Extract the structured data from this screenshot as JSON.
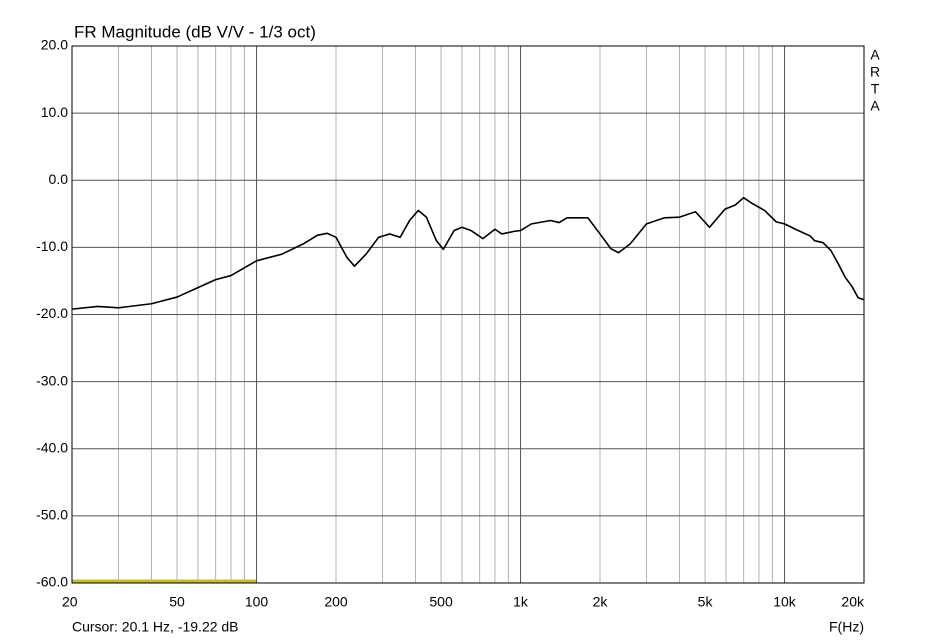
{
  "chart_data": {
    "type": "line",
    "title": "FR Magnitude (dB V/V - 1/3 oct)",
    "watermark": "ARTA",
    "cursor": "Cursor: 20.1 Hz, -19.22 dB",
    "x_label": "F(Hz)",
    "log_x": true,
    "grid": true,
    "xlim": [
      20,
      20000
    ],
    "ylim": [
      -60,
      20
    ],
    "xticks": [
      20,
      50,
      100,
      200,
      500,
      {
        "value": 1000,
        "label": "1k"
      },
      {
        "value": 2000,
        "label": "2k"
      },
      {
        "value": 5000,
        "label": "5k"
      },
      {
        "value": 10000,
        "label": "10k"
      },
      {
        "value": 20000,
        "label": "20k"
      }
    ],
    "xminorticks": [
      30,
      40,
      60,
      70,
      80,
      90,
      300,
      400,
      600,
      700,
      800,
      900,
      3000,
      4000,
      6000,
      7000,
      8000,
      9000
    ],
    "yticks": [
      {
        "value": 20,
        "label": "20.0"
      },
      {
        "value": 10,
        "label": "10.0"
      },
      {
        "value": 0,
        "label": "0.0"
      },
      {
        "value": -10,
        "label": "-10.0"
      },
      {
        "value": -20,
        "label": "-20.0"
      },
      {
        "value": -30,
        "label": "-30.0"
      },
      {
        "value": -40,
        "label": "-40.0"
      },
      {
        "value": -50,
        "label": "-50.0"
      },
      {
        "value": -60,
        "label": "-60.0"
      }
    ],
    "x": [
      20,
      25,
      30,
      40,
      50,
      60,
      70,
      80,
      100,
      125,
      150,
      170,
      185,
      200,
      220,
      235,
      260,
      290,
      320,
      350,
      380,
      410,
      440,
      480,
      510,
      560,
      600,
      650,
      720,
      800,
      850,
      950,
      1000,
      1100,
      1300,
      1400,
      1500,
      1800,
      2000,
      2200,
      2350,
      2600,
      3000,
      3500,
      4000,
      4600,
      5200,
      5950,
      6500,
      7000,
      7500,
      8400,
      9300,
      10000,
      11000,
      12500,
      13000,
      14000,
      15000,
      16000,
      17000,
      18000,
      19000,
      20000
    ],
    "series": [
      {
        "name": "FR Magnitude",
        "color": "#000000",
        "values": [
          -19.2,
          -18.8,
          -19.0,
          -18.4,
          -17.4,
          -16.0,
          -14.8,
          -14.2,
          -12.0,
          -11.0,
          -9.5,
          -8.2,
          -7.9,
          -8.5,
          -11.5,
          -12.8,
          -11.0,
          -8.5,
          -8.0,
          -8.5,
          -6.0,
          -4.5,
          -5.5,
          -9.0,
          -10.3,
          -7.5,
          -7.0,
          -7.5,
          -8.7,
          -7.3,
          -8.0,
          -7.6,
          -7.5,
          -6.5,
          -6.0,
          -6.3,
          -5.6,
          -5.6,
          -8.0,
          -10.2,
          -10.8,
          -9.5,
          -6.5,
          -5.6,
          -5.5,
          -4.7,
          -7.0,
          -4.3,
          -3.7,
          -2.6,
          -3.4,
          -4.5,
          -6.2,
          -6.5,
          -7.3,
          -8.3,
          -9.0,
          -9.3,
          -10.5,
          -12.5,
          -14.5,
          -15.8,
          -17.5,
          -17.8
        ]
      }
    ]
  }
}
